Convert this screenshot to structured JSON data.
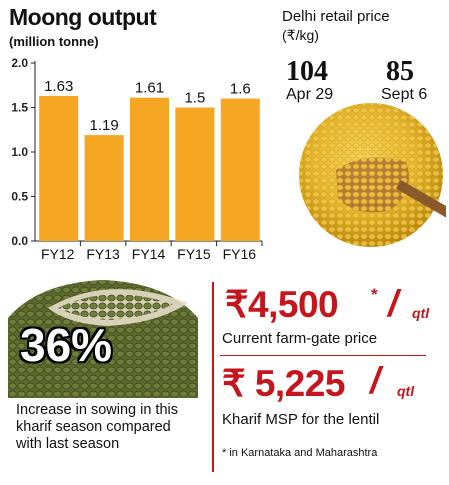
{
  "chart_data": {
    "type": "bar",
    "title": "Moong output",
    "subtitle": "(million tonne)",
    "categories": [
      "FY12",
      "FY13",
      "FY14",
      "FY15",
      "FY16"
    ],
    "values": [
      1.63,
      1.19,
      1.61,
      1.5,
      1.6
    ],
    "value_labels": [
      "1.63",
      "1.19",
      "1.61",
      "1.5",
      "1.6"
    ],
    "ylim": [
      0,
      2.0
    ],
    "yticks": [
      "0.0",
      "0.5",
      "1.0",
      "1.5",
      "2.0"
    ],
    "ytick_values": [
      0,
      0.5,
      1.0,
      1.5,
      2.0
    ],
    "grid": false,
    "bar_color": "#f5a623"
  },
  "retail": {
    "title": "Delhi retail price",
    "unit": "(₹/kg)",
    "prices": [
      {
        "value": "104",
        "date": "Apr 29"
      },
      {
        "value": "85",
        "date": "Sept 6"
      }
    ]
  },
  "sowing": {
    "percent": "36%",
    "description": "Increase in sowing in this kharif season compared with last season"
  },
  "farm_gate": {
    "value": "₹4,500",
    "mark": "*",
    "unit_slash": "/",
    "unit": "qtl",
    "label": "Current farm-gate price"
  },
  "msp": {
    "value": "₹ 5,225",
    "unit_slash": "/",
    "unit": "qtl",
    "label": "Kharif MSP for the lentil"
  },
  "footnote": "* in Karnataka and Maharashtra",
  "colors": {
    "accent": "#c4161c",
    "bar": "#f5a623",
    "text": "#111111"
  }
}
